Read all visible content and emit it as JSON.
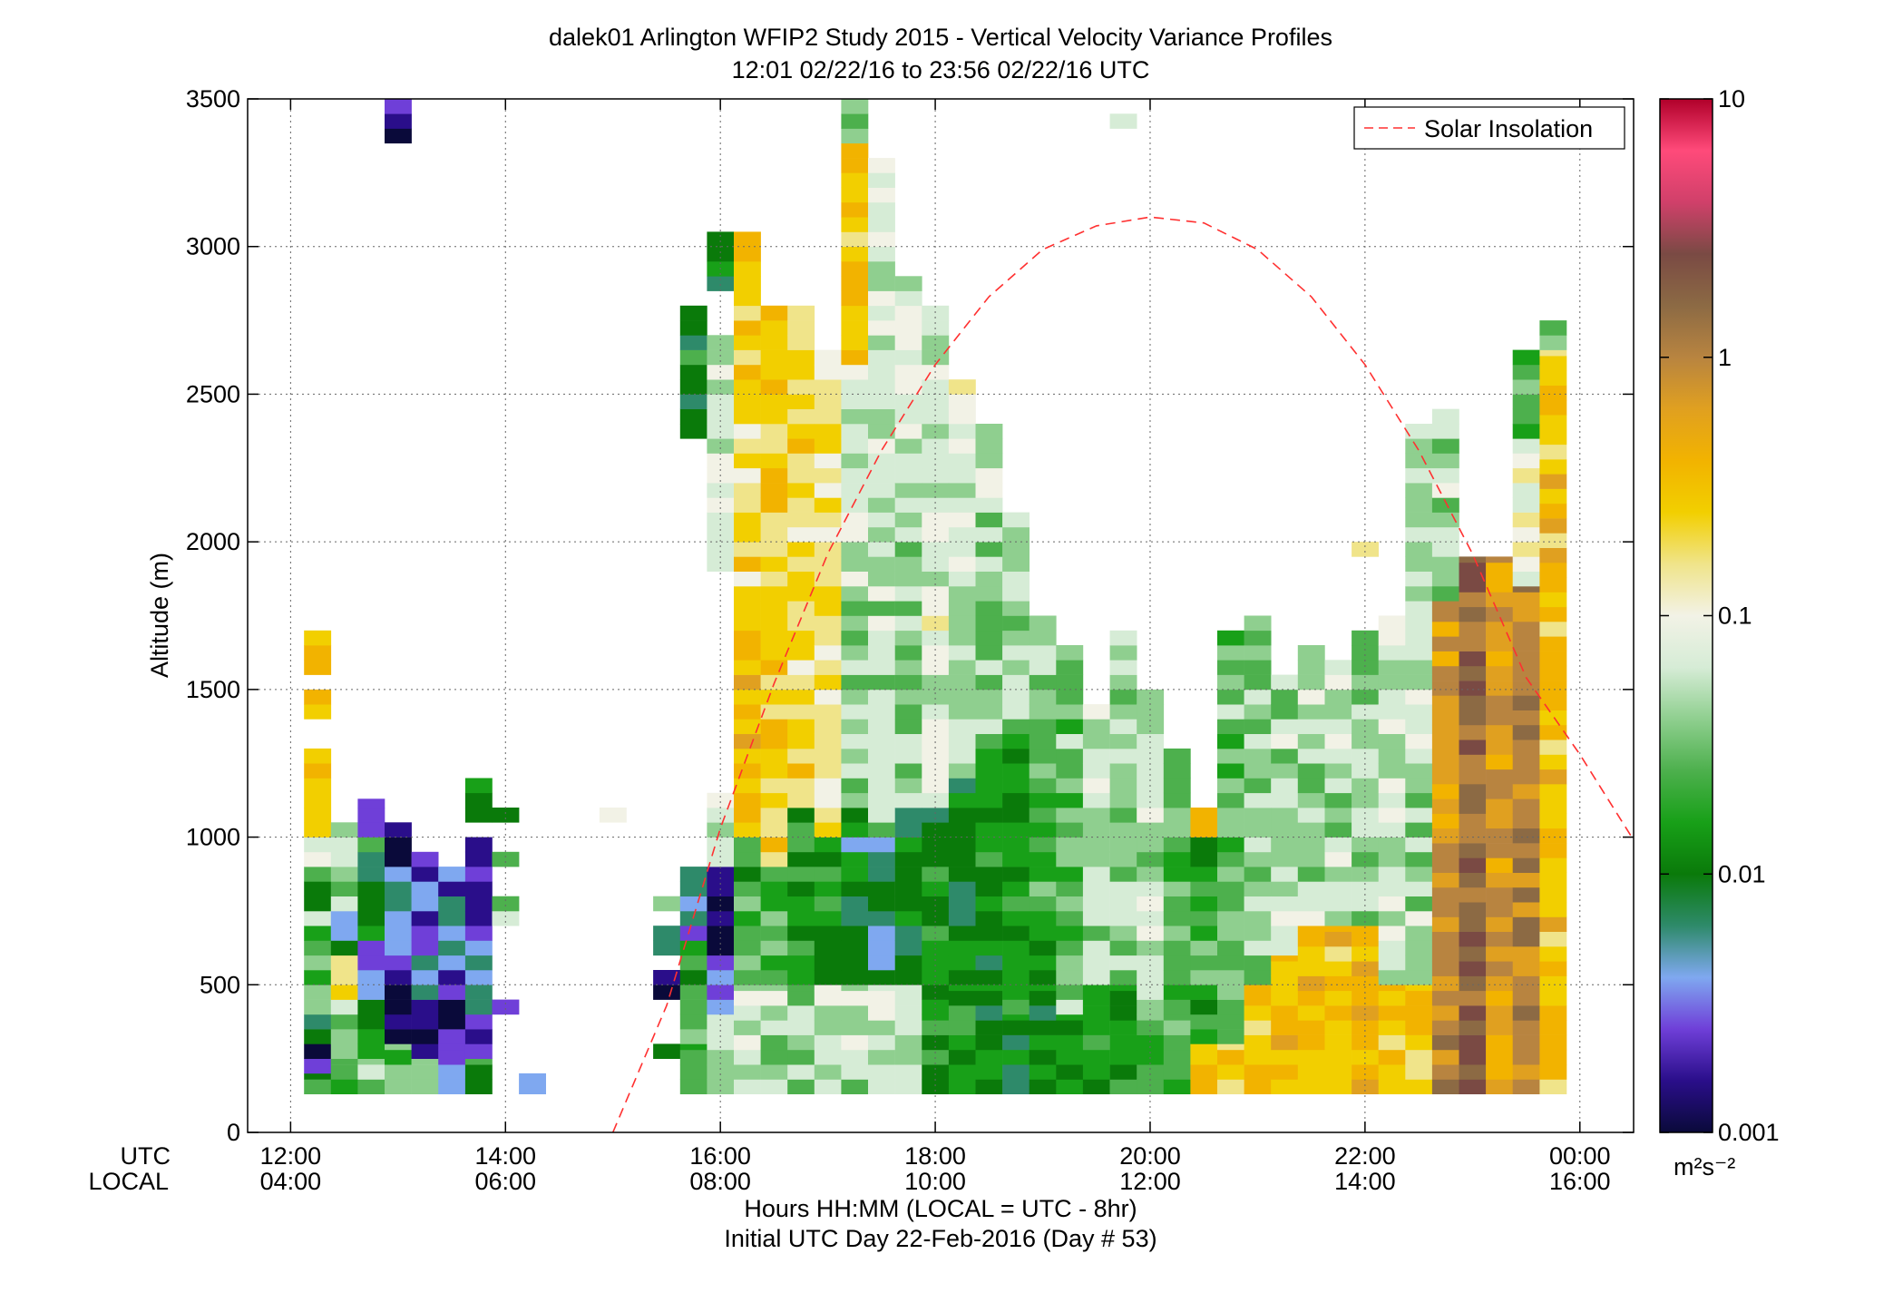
{
  "figure": {
    "title_line1": "dalek01 Arlington WFIP2 Study 2015 - Vertical Velocity Variance Profiles",
    "title_line2": "12:01 02/22/16 to 23:56 02/22/16  UTC",
    "utc_row_label": "UTC",
    "local_row_label": "LOCAL",
    "xlabel_line1": "Hours HH:MM  (LOCAL = UTC - 8hr)",
    "xlabel_line2": "Initial UTC Day 22-Feb-2016 (Day # 53)",
    "ylabel": "Altitude (m)",
    "legend_label": "Solar Insolation",
    "colorbar_units": "m²s⁻²"
  },
  "colors": {
    "solar_line": "#ff3030",
    "colorscale": [
      "#0a0a3a",
      "#2a0e8a",
      "#6f3fd8",
      "#7fa8f0",
      "#2e8a6a",
      "#0a7a0a",
      "#18a018",
      "#4db04d",
      "#8fcf8f",
      "#d6ecd6",
      "#f2f2e6",
      "#f0e48a",
      "#f2cf00",
      "#f2b300",
      "#e0a020",
      "#b88440",
      "#8c6a44",
      "#7a4a44",
      "#d0406a",
      "#ff4a7a",
      "#b0002a"
    ]
  },
  "chart_data": {
    "type": "heatmap",
    "title": "dalek01 Arlington WFIP2 Study 2015 - Vertical Velocity Variance Profiles",
    "subtitle": "12:01 02/22/16 to 23:56 02/22/16  UTC",
    "xlabel": "Hours HH:MM  (LOCAL = UTC - 8hr)",
    "ylabel": "Altitude (m)",
    "x_units": "hours UTC",
    "xlim": [
      11.6,
      24.5
    ],
    "ylim": [
      0,
      3500
    ],
    "grid": true,
    "x_ticks": [
      {
        "utc": "12:00",
        "local": "04:00",
        "value": 12
      },
      {
        "utc": "14:00",
        "local": "06:00",
        "value": 14
      },
      {
        "utc": "16:00",
        "local": "08:00",
        "value": 16
      },
      {
        "utc": "18:00",
        "local": "10:00",
        "value": 18
      },
      {
        "utc": "20:00",
        "local": "12:00",
        "value": 20
      },
      {
        "utc": "22:00",
        "local": "14:00",
        "value": 22
      },
      {
        "utc": "00:00",
        "local": "16:00",
        "value": 24
      }
    ],
    "y_ticks": [
      {
        "label": "0",
        "value": 0
      },
      {
        "label": "500",
        "value": 500
      },
      {
        "label": "1000",
        "value": 1000
      },
      {
        "label": "1500",
        "value": 1500
      },
      {
        "label": "2000",
        "value": 2000
      },
      {
        "label": "2500",
        "value": 2500
      },
      {
        "label": "3000",
        "value": 3000
      },
      {
        "label": "3500",
        "value": 3500
      }
    ],
    "colorbar": {
      "scale": "log",
      "range": [
        0.001,
        10
      ],
      "ticks": [
        {
          "label": "0.001",
          "value": 0.001
        },
        {
          "label": "0.01",
          "value": 0.01
        },
        {
          "label": "0.1",
          "value": 0.1
        },
        {
          "label": "1",
          "value": 1
        },
        {
          "label": "10",
          "value": 10
        }
      ],
      "units": "m²s⁻²"
    },
    "legend": {
      "position": "top-right",
      "entries": [
        "Solar Insolation"
      ]
    },
    "solar_insolation_curve": {
      "x": [
        15.0,
        15.5,
        16.0,
        16.5,
        17.0,
        17.5,
        18.0,
        18.5,
        19.0,
        19.5,
        20.0,
        20.5,
        21.0,
        21.5,
        22.0,
        22.5,
        23.0,
        23.5,
        24.0,
        24.5
      ],
      "y": [
        0,
        430,
        1030,
        1520,
        1960,
        2310,
        2600,
        2830,
        2990,
        3070,
        3100,
        3080,
        2990,
        2830,
        2600,
        2310,
        1960,
        1540,
        1280,
        990
      ]
    },
    "time_bin_hours": 0.25,
    "altitude_bin_m": 50,
    "columns": [
      {
        "t": 12.25,
        "segments": [
          [
            130,
            200,
            0.015
          ],
          [
            200,
            300,
            0.0015
          ],
          [
            300,
            400,
            0.012
          ],
          [
            400,
            550,
            0.02
          ],
          [
            550,
            750,
            0.03
          ],
          [
            750,
            900,
            0.015
          ],
          [
            900,
            1000,
            0.06
          ],
          [
            1000,
            1100,
            0.15
          ],
          [
            1100,
            1300,
            0.3
          ],
          [
            1400,
            1500,
            0.25
          ],
          [
            1550,
            1650,
            0.5
          ],
          [
            1650,
            1700,
            0.15
          ]
        ]
      },
      {
        "t": 12.5,
        "segments": [
          [
            130,
            250,
            0.03
          ],
          [
            250,
            450,
            0.05
          ],
          [
            450,
            600,
            0.2
          ],
          [
            600,
            750,
            0.006
          ],
          [
            750,
            1050,
            0.04
          ]
        ]
      },
      {
        "t": 12.75,
        "segments": [
          [
            130,
            250,
            0.04
          ],
          [
            250,
            450,
            0.012
          ],
          [
            450,
            650,
            0.003
          ],
          [
            650,
            1000,
            0.012
          ],
          [
            1000,
            1130,
            0.003
          ]
        ]
      },
      {
        "t": 13.0,
        "segments": [
          [
            130,
            300,
            0.03
          ],
          [
            300,
            550,
            0.0012
          ],
          [
            550,
            900,
            0.004
          ],
          [
            900,
            1050,
            0.0012
          ],
          [
            3350,
            3500,
            0.0015
          ]
        ]
      },
      {
        "t": 13.25,
        "segments": [
          [
            130,
            250,
            0.04
          ],
          [
            250,
            450,
            0.0012
          ],
          [
            450,
            600,
            0.006
          ],
          [
            600,
            900,
            0.003
          ],
          [
            900,
            950,
            0.005
          ]
        ]
      },
      {
        "t": 13.5,
        "segments": [
          [
            130,
            300,
            0.003
          ],
          [
            300,
            550,
            0.0015
          ],
          [
            550,
            800,
            0.005
          ],
          [
            800,
            900,
            0.003
          ]
        ]
      },
      {
        "t": 13.75,
        "segments": [
          [
            130,
            250,
            0.012
          ],
          [
            250,
            400,
            0.003
          ],
          [
            400,
            600,
            0.005
          ],
          [
            600,
            800,
            0.003
          ],
          [
            800,
            1000,
            0.0015
          ],
          [
            1050,
            1200,
            0.012
          ]
        ]
      },
      {
        "t": 14.0,
        "segments": [
          [
            400,
            450,
            0.004
          ],
          [
            700,
            800,
            0.03
          ],
          [
            900,
            950,
            0.03
          ],
          [
            1050,
            1100,
            0.012
          ]
        ]
      },
      {
        "t": 14.25,
        "segments": [
          [
            130,
            200,
            0.005
          ]
        ]
      },
      {
        "t": 15.0,
        "segments": [
          [
            1050,
            1100,
            0.12
          ]
        ]
      },
      {
        "t": 15.5,
        "segments": [
          [
            750,
            800,
            0.03
          ],
          [
            600,
            700,
            0.006
          ],
          [
            450,
            550,
            0.0015
          ],
          [
            250,
            300,
            0.012
          ]
        ]
      },
      {
        "t": 15.75,
        "segments": [
          [
            130,
            300,
            0.015
          ],
          [
            300,
            500,
            0.03
          ],
          [
            500,
            650,
            0.012
          ],
          [
            650,
            900,
            0.005
          ],
          [
            2350,
            2800,
            0.012
          ]
        ]
      },
      {
        "t": 16.0,
        "segments": [
          [
            130,
            400,
            0.03
          ],
          [
            400,
            600,
            0.004
          ],
          [
            600,
            900,
            0.0012
          ],
          [
            900,
            1150,
            0.06
          ],
          [
            1900,
            2700,
            0.06
          ],
          [
            2850,
            3050,
            0.01
          ]
        ]
      },
      {
        "t": 16.25,
        "segments": [
          [
            130,
            500,
            0.06
          ],
          [
            500,
            1000,
            0.02
          ],
          [
            1000,
            1700,
            0.3
          ],
          [
            1700,
            2500,
            0.2
          ],
          [
            2500,
            3050,
            0.3
          ]
        ]
      },
      {
        "t": 16.5,
        "segments": [
          [
            130,
            500,
            0.05
          ],
          [
            500,
            900,
            0.02
          ],
          [
            900,
            2800,
            0.25
          ]
        ]
      },
      {
        "t": 16.75,
        "segments": [
          [
            130,
            500,
            0.04
          ],
          [
            500,
            1100,
            0.015
          ],
          [
            1100,
            2800,
            0.2
          ]
        ]
      },
      {
        "t": 17.0,
        "segments": [
          [
            130,
            500,
            0.06
          ],
          [
            500,
            1000,
            0.015
          ],
          [
            1000,
            2650,
            0.15
          ]
        ]
      },
      {
        "t": 17.25,
        "segments": [
          [
            130,
            500,
            0.05
          ],
          [
            500,
            1100,
            0.008
          ],
          [
            1100,
            1800,
            0.04
          ],
          [
            1800,
            2600,
            0.06
          ],
          [
            2600,
            3350,
            0.3
          ],
          [
            3350,
            3500,
            0.02
          ]
        ]
      },
      {
        "t": 17.5,
        "segments": [
          [
            130,
            500,
            0.06
          ],
          [
            500,
            1000,
            0.006
          ],
          [
            1000,
            2200,
            0.05
          ],
          [
            2200,
            3300,
            0.07
          ]
        ]
      },
      {
        "t": 17.75,
        "segments": [
          [
            130,
            500,
            0.04
          ],
          [
            500,
            1100,
            0.01
          ],
          [
            1100,
            2200,
            0.04
          ],
          [
            2200,
            2900,
            0.06
          ]
        ]
      },
      {
        "t": 18.0,
        "segments": [
          [
            130,
            400,
            0.02
          ],
          [
            400,
            1100,
            0.012
          ],
          [
            1100,
            2100,
            0.08
          ],
          [
            2100,
            2800,
            0.06
          ]
        ]
      },
      {
        "t": 18.25,
        "segments": [
          [
            130,
            500,
            0.02
          ],
          [
            500,
            1200,
            0.01
          ],
          [
            1200,
            2300,
            0.05
          ],
          [
            2300,
            2550,
            0.1
          ]
        ]
      },
      {
        "t": 18.5,
        "segments": [
          [
            130,
            500,
            0.012
          ],
          [
            500,
            1300,
            0.012
          ],
          [
            1300,
            2100,
            0.04
          ],
          [
            2100,
            2400,
            0.06
          ]
        ]
      },
      {
        "t": 18.75,
        "segments": [
          [
            130,
            400,
            0.01
          ],
          [
            400,
            1400,
            0.015
          ],
          [
            1400,
            2100,
            0.05
          ]
        ]
      },
      {
        "t": 19.0,
        "segments": [
          [
            130,
            500,
            0.012
          ],
          [
            500,
            1400,
            0.02
          ],
          [
            1400,
            1750,
            0.05
          ]
        ]
      },
      {
        "t": 19.25,
        "segments": [
          [
            130,
            400,
            0.015
          ],
          [
            400,
            1500,
            0.03
          ],
          [
            1500,
            1650,
            0.04
          ]
        ]
      },
      {
        "t": 19.5,
        "segments": [
          [
            130,
            500,
            0.02
          ],
          [
            500,
            1450,
            0.05
          ]
        ]
      },
      {
        "t": 19.75,
        "segments": [
          [
            130,
            500,
            0.015
          ],
          [
            500,
            1700,
            0.04
          ],
          [
            3400,
            3450,
            0.08
          ]
        ]
      },
      {
        "t": 20.0,
        "segments": [
          [
            130,
            400,
            0.02
          ],
          [
            400,
            1500,
            0.05
          ]
        ]
      },
      {
        "t": 20.25,
        "segments": [
          [
            130,
            400,
            0.02
          ],
          [
            400,
            1300,
            0.03
          ]
        ]
      },
      {
        "t": 20.5,
        "segments": [
          [
            130,
            300,
            0.3
          ],
          [
            300,
            1000,
            0.02
          ],
          [
            1000,
            1100,
            0.5
          ]
        ]
      },
      {
        "t": 20.75,
        "segments": [
          [
            130,
            300,
            0.2
          ],
          [
            300,
            1700,
            0.03
          ]
        ]
      },
      {
        "t": 21.0,
        "segments": [
          [
            130,
            500,
            0.3
          ],
          [
            500,
            1750,
            0.04
          ]
        ]
      },
      {
        "t": 21.25,
        "segments": [
          [
            130,
            600,
            0.35
          ],
          [
            600,
            1550,
            0.05
          ]
        ]
      },
      {
        "t": 21.5,
        "segments": [
          [
            130,
            700,
            0.35
          ],
          [
            700,
            1650,
            0.05
          ]
        ]
      },
      {
        "t": 21.75,
        "segments": [
          [
            130,
            700,
            0.3
          ],
          [
            700,
            1600,
            0.05
          ]
        ]
      },
      {
        "t": 22.0,
        "segments": [
          [
            130,
            700,
            0.4
          ],
          [
            700,
            1700,
            0.04
          ],
          [
            1950,
            2000,
            0.1
          ]
        ]
      },
      {
        "t": 22.25,
        "segments": [
          [
            130,
            500,
            0.3
          ],
          [
            500,
            1750,
            0.06
          ]
        ]
      },
      {
        "t": 22.5,
        "segments": [
          [
            130,
            500,
            0.25
          ],
          [
            500,
            2400,
            0.05
          ]
        ]
      },
      {
        "t": 22.75,
        "segments": [
          [
            130,
            1800,
            0.8
          ],
          [
            1800,
            2450,
            0.05
          ]
        ]
      },
      {
        "t": 23.0,
        "segments": [
          [
            130,
            1950,
            1.5
          ]
        ]
      },
      {
        "t": 23.25,
        "segments": [
          [
            130,
            1950,
            0.7
          ]
        ]
      },
      {
        "t": 23.5,
        "segments": [
          [
            130,
            1850,
            1.0
          ],
          [
            1850,
            2350,
            0.08
          ],
          [
            2350,
            2650,
            0.02
          ]
        ]
      },
      {
        "t": 23.75,
        "segments": [
          [
            130,
            2650,
            0.3
          ],
          [
            2650,
            2750,
            0.02
          ]
        ]
      }
    ]
  }
}
